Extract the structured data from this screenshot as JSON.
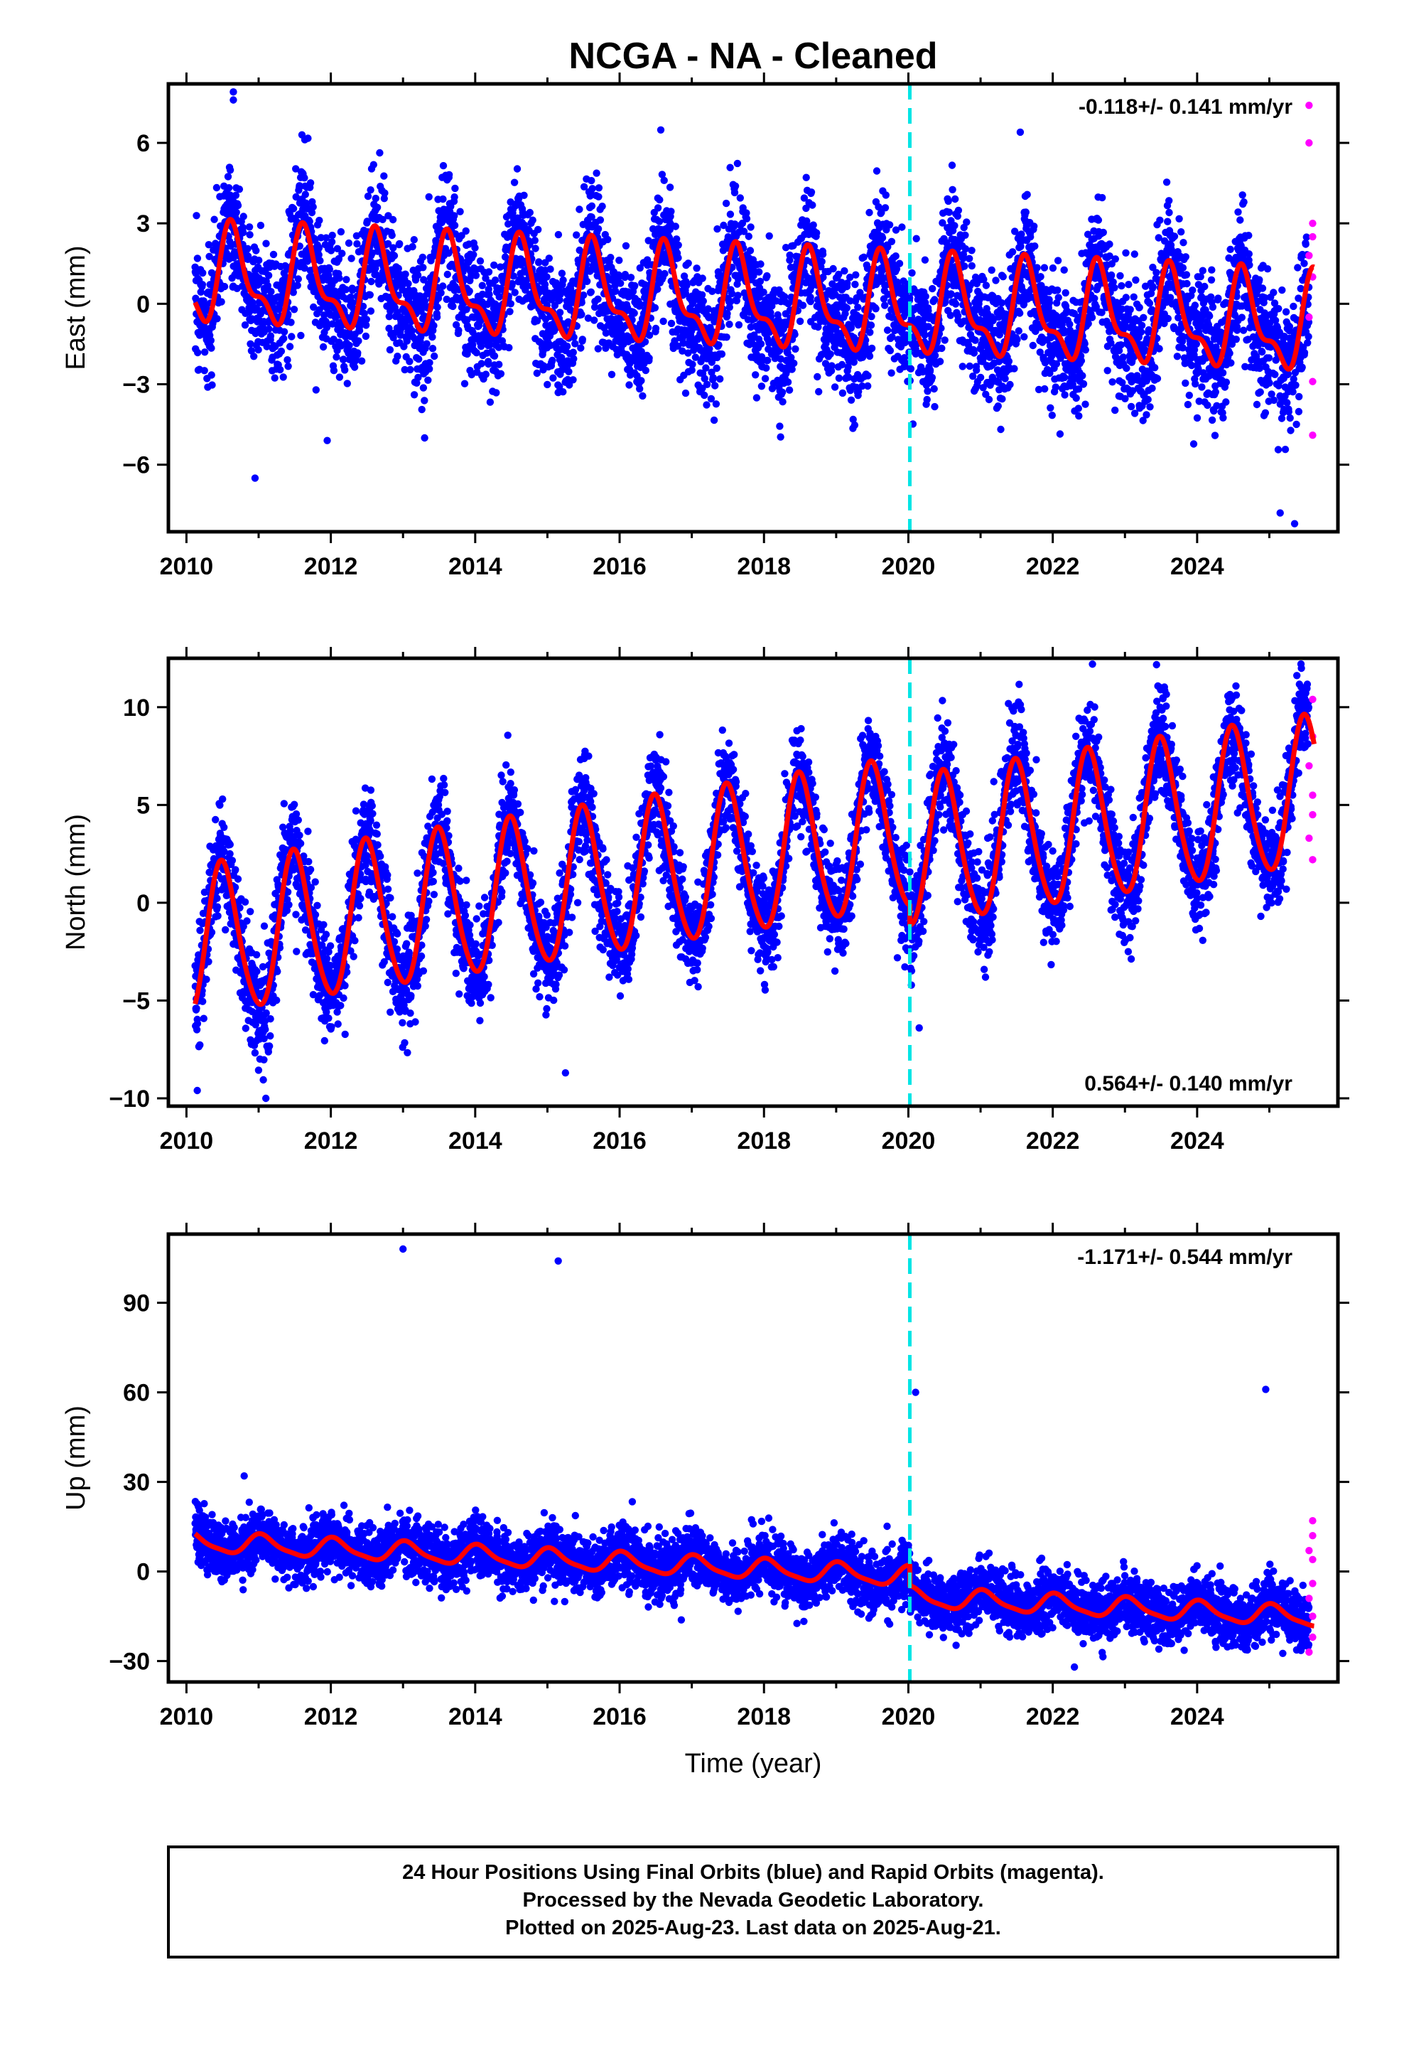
{
  "title": "NCGA  - NA - Cleaned",
  "xlabel": "Time (year)",
  "footer": {
    "line1": "24 Hour Positions Using Final Orbits (blue) and Rapid Orbits (magenta).",
    "line2": "Processed by the Nevada Geodetic Laboratory.",
    "line3": "Plotted on 2025-Aug-23. Last data on 2025-Aug-21."
  },
  "colors": {
    "final_orbits": "#0000ff",
    "rapid_orbits": "#ff00ff",
    "model_fit": "#ff0000",
    "event_line": "#00e5e5"
  },
  "chart_data": [
    {
      "type": "scatter",
      "ylabel": "East (mm)",
      "rate_text": "-0.118+/- 0.141 mm/yr",
      "xlim": [
        2009.75,
        2025.95
      ],
      "ylim": [
        -8.5,
        8.2
      ],
      "xticks": [
        2010,
        2012,
        2014,
        2016,
        2018,
        2020,
        2022,
        2024
      ],
      "yticks": [
        -6,
        -3,
        0,
        3,
        6
      ],
      "event_line_x": 2020.02,
      "model": {
        "trend": -0.118,
        "offset_at_event": 0,
        "annual_amplitude": 1.6,
        "annual_peak": 0.65,
        "semiannual_amplitude": 0.7,
        "base_at_2010": 1.0
      },
      "noise_sd": 1.2,
      "outliers": [
        {
          "x": 2010.65,
          "y": 7.9
        },
        {
          "x": 2010.65,
          "y": 7.6
        },
        {
          "x": 2010.95,
          "y": -6.5
        },
        {
          "x": 2011.6,
          "y": 6.3
        },
        {
          "x": 2011.95,
          "y": -5.1
        },
        {
          "x": 2021.55,
          "y": 6.4
        },
        {
          "x": 2025.35,
          "y": -8.2
        },
        {
          "x": 2025.15,
          "y": -7.8
        }
      ],
      "rapid": [
        {
          "x": 2025.55,
          "y": 7.4
        },
        {
          "x": 2025.55,
          "y": 6.0
        },
        {
          "x": 2025.6,
          "y": 3.0
        },
        {
          "x": 2025.6,
          "y": 2.5
        },
        {
          "x": 2025.55,
          "y": 1.8
        },
        {
          "x": 2025.6,
          "y": 1.0
        },
        {
          "x": 2025.55,
          "y": -0.5
        },
        {
          "x": 2025.6,
          "y": -2.9
        },
        {
          "x": 2025.6,
          "y": -4.9
        }
      ]
    },
    {
      "type": "scatter",
      "ylabel": "North (mm)",
      "rate_text": "0.564+/- 0.140 mm/yr",
      "xlim": [
        2009.75,
        2025.95
      ],
      "ylim": [
        -10.4,
        12.5
      ],
      "xticks": [
        2010,
        2012,
        2014,
        2016,
        2018,
        2020,
        2022,
        2024
      ],
      "yticks": [
        -10,
        -5,
        0,
        5,
        10
      ],
      "event_line_x": 2020.02,
      "model": {
        "trend": 0.564,
        "offset_at_event": -1.0,
        "annual_amplitude": 3.8,
        "annual_peak": 0.5,
        "semiannual_amplitude": 0.4,
        "base_at_2010": -2.2
      },
      "noise_sd": 1.3,
      "outliers": [
        {
          "x": 2010.5,
          "y": 5.3
        },
        {
          "x": 2010.15,
          "y": -9.6
        },
        {
          "x": 2011.1,
          "y": -10.0
        },
        {
          "x": 2015.25,
          "y": -8.7
        },
        {
          "x": 2020.15,
          "y": -6.4
        },
        {
          "x": 2022.55,
          "y": 12.2
        }
      ],
      "rapid": [
        {
          "x": 2025.6,
          "y": 10.4
        },
        {
          "x": 2025.6,
          "y": 8.5
        },
        {
          "x": 2025.55,
          "y": 7.0
        },
        {
          "x": 2025.6,
          "y": 5.5
        },
        {
          "x": 2025.6,
          "y": 4.5
        },
        {
          "x": 2025.55,
          "y": 3.3
        },
        {
          "x": 2025.6,
          "y": 2.2
        }
      ]
    },
    {
      "type": "scatter",
      "ylabel": "Up (mm)",
      "rate_text": "-1.171+/- 0.544 mm/yr",
      "xlim": [
        2009.75,
        2025.95
      ],
      "ylim": [
        -37,
        113
      ],
      "xticks": [
        2010,
        2012,
        2014,
        2016,
        2018,
        2020,
        2022,
        2024
      ],
      "yticks": [
        -30,
        0,
        30,
        60,
        90
      ],
      "event_line_x": 2020.02,
      "model": {
        "trend": -1.171,
        "offset_at_event": -7.0,
        "annual_amplitude": 3.2,
        "annual_peak": 0.05,
        "semiannual_amplitude": 0.8,
        "base_at_2010": 10.0
      },
      "noise_sd": 5.0,
      "outliers": [
        {
          "x": 2013.0,
          "y": 108
        },
        {
          "x": 2015.15,
          "y": 104
        },
        {
          "x": 2020.1,
          "y": 60
        },
        {
          "x": 2024.95,
          "y": 61
        },
        {
          "x": 2010.8,
          "y": 32
        },
        {
          "x": 2022.3,
          "y": -32
        }
      ],
      "rapid": [
        {
          "x": 2025.6,
          "y": 17
        },
        {
          "x": 2025.6,
          "y": 12
        },
        {
          "x": 2025.55,
          "y": 7
        },
        {
          "x": 2025.6,
          "y": 4
        },
        {
          "x": 2025.6,
          "y": -4
        },
        {
          "x": 2025.55,
          "y": -9
        },
        {
          "x": 2025.6,
          "y": -15
        },
        {
          "x": 2025.6,
          "y": -22
        },
        {
          "x": 2025.55,
          "y": -27
        }
      ]
    }
  ]
}
